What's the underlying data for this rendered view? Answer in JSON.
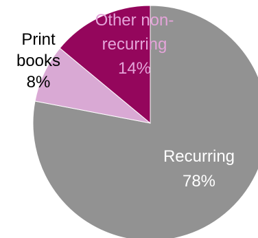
{
  "chart_data": {
    "type": "pie",
    "title": "",
    "start_angle_deg": 0,
    "direction": "clockwise",
    "slices": [
      {
        "label_lines": [
          "Recurring",
          "78%"
        ],
        "value": 78,
        "color": "#929292",
        "label_color": "#ffffff"
      },
      {
        "label_lines": [
          "Print",
          "books",
          "8%"
        ],
        "value": 8,
        "color": "#d9a9d4",
        "label_color": "#000000"
      },
      {
        "label_lines": [
          "Other non-",
          "recurring",
          "14%"
        ],
        "value": 14,
        "color": "#94065c",
        "label_color": "#e4a4d9"
      }
    ]
  }
}
